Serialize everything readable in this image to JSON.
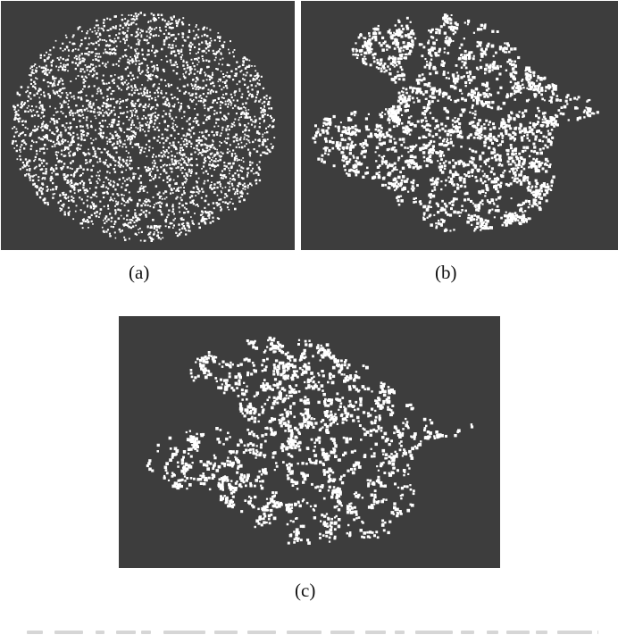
{
  "figure": {
    "panels": [
      {
        "id": "a",
        "caption": "(a)",
        "shape": "round-blob"
      },
      {
        "id": "b",
        "caption": "(b)",
        "shape": "bird-silhouette"
      },
      {
        "id": "c",
        "caption": "(c)",
        "shape": "bird-silhouette-sparse"
      }
    ],
    "colors": {
      "panel_background": "#3d3d3d",
      "points": "#ffffff",
      "page_background": "#ffffff"
    }
  }
}
